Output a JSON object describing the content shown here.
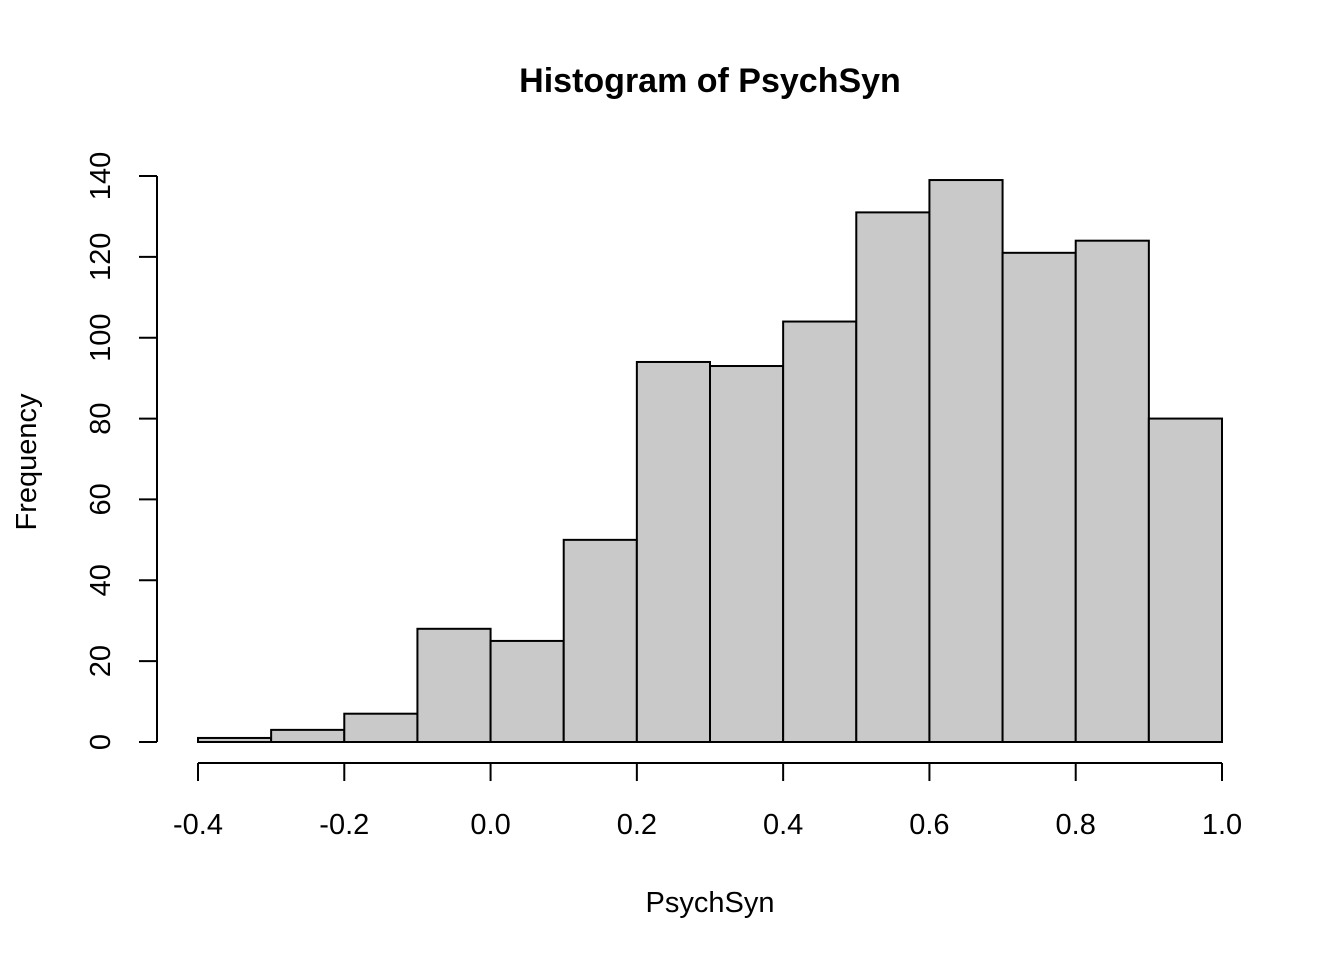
{
  "chart_data": {
    "type": "bar",
    "title": "Histogram of PsychSyn",
    "xlabel": "PsychSyn",
    "ylabel": "Frequency",
    "bin_edges": [
      -0.4,
      -0.3,
      -0.2,
      -0.1,
      0.0,
      0.1,
      0.2,
      0.3,
      0.4,
      0.5,
      0.6,
      0.7,
      0.8,
      0.9,
      1.0
    ],
    "values": [
      1,
      3,
      7,
      28,
      25,
      50,
      94,
      93,
      104,
      131,
      139,
      121,
      124,
      80
    ],
    "xlim": [
      -0.4,
      1.0
    ],
    "ylim": [
      0,
      140
    ],
    "xticks": [
      -0.4,
      -0.2,
      0.0,
      0.2,
      0.4,
      0.6,
      0.8,
      1.0
    ],
    "xtick_labels": [
      "-0.4",
      "-0.2",
      "0.0",
      "0.2",
      "0.4",
      "0.6",
      "0.8",
      "1.0"
    ],
    "yticks": [
      0,
      20,
      40,
      60,
      80,
      100,
      120,
      140
    ],
    "ytick_labels": [
      "0",
      "20",
      "40",
      "60",
      "80",
      "100",
      "120",
      "140"
    ],
    "bar_color": "#c9c9c9",
    "edge_color": "#000000",
    "grid": false,
    "legend": "none"
  }
}
